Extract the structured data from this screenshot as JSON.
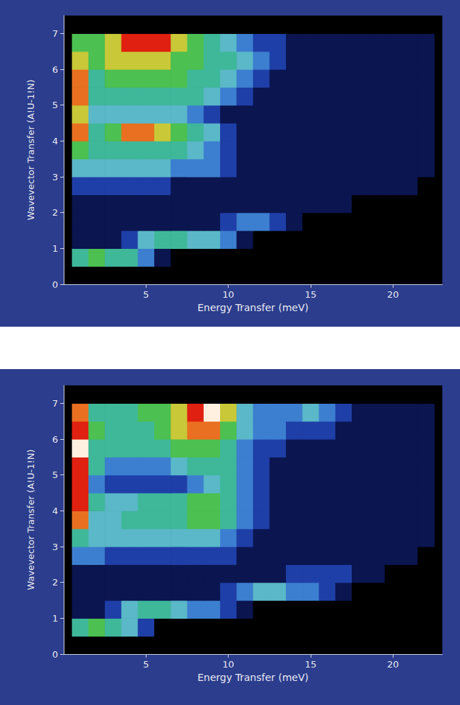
{
  "chart_data": [
    {
      "type": "heatmap",
      "x_label": "Energy Transfer (meV)",
      "y_label": "Wavevector Transfer (A!U-1!N)",
      "xlim": [
        0,
        23
      ],
      "xticks": [
        5,
        10,
        15,
        20
      ],
      "ylim": [
        0,
        7.5
      ],
      "yticks": [
        0,
        1,
        2,
        3,
        4,
        5,
        6,
        7
      ],
      "color_range": [
        0,
        10
      ],
      "x": [
        1,
        2,
        3,
        4,
        5,
        6,
        7,
        8,
        9,
        10,
        11,
        12,
        13,
        14,
        15,
        16,
        17,
        18,
        19,
        20,
        21,
        22
      ],
      "y": [
        0.25,
        0.75,
        1.25,
        1.75,
        2.25,
        2.75,
        3.25,
        3.75,
        4.25,
        4.75,
        5.25,
        5.75,
        6.25,
        6.75,
        7.25
      ],
      "intensity": [
        [
          0,
          0,
          0,
          0,
          0,
          0,
          0,
          0,
          0,
          0,
          0,
          0,
          0,
          0,
          0,
          0,
          0,
          0,
          0,
          0,
          0,
          0
        ],
        [
          5,
          6,
          5,
          5,
          3,
          1,
          0,
          0,
          0,
          0,
          0,
          0,
          0,
          0,
          0,
          0,
          0,
          0,
          0,
          0,
          0,
          0
        ],
        [
          1,
          1,
          1,
          2,
          4,
          5,
          5,
          4,
          4,
          3,
          1,
          0,
          0,
          0,
          0,
          0,
          0,
          0,
          0,
          0,
          0,
          0
        ],
        [
          1,
          1,
          1,
          1,
          1,
          1,
          1,
          1,
          1,
          2,
          3,
          3,
          2,
          1,
          0,
          0,
          0,
          0,
          0,
          0,
          0,
          0
        ],
        [
          1,
          1,
          1,
          1,
          1,
          1,
          1,
          1,
          1,
          1,
          1,
          1,
          1,
          1,
          1,
          1,
          1,
          0,
          0,
          0,
          0,
          0
        ],
        [
          2,
          2,
          2,
          2,
          2,
          2,
          1,
          1,
          1,
          1,
          1,
          1,
          1,
          1,
          1,
          1,
          1,
          1,
          1,
          1,
          1,
          0
        ],
        [
          4,
          4,
          4,
          4,
          4,
          4,
          3,
          3,
          3,
          2,
          1,
          1,
          1,
          1,
          1,
          1,
          1,
          1,
          1,
          1,
          1,
          1
        ],
        [
          6,
          5,
          5,
          5,
          5,
          5,
          5,
          4,
          3,
          2,
          1,
          1,
          1,
          1,
          1,
          1,
          1,
          1,
          1,
          1,
          1,
          1
        ],
        [
          8,
          5,
          6,
          8,
          8,
          7,
          6,
          5,
          4,
          2,
          1,
          1,
          1,
          1,
          1,
          1,
          1,
          1,
          1,
          1,
          1,
          1
        ],
        [
          7,
          4,
          4,
          4,
          4,
          4,
          4,
          3,
          2,
          1,
          1,
          1,
          1,
          1,
          1,
          1,
          1,
          1,
          1,
          1,
          1,
          1
        ],
        [
          8,
          5,
          5,
          5,
          5,
          5,
          5,
          5,
          4,
          3,
          2,
          1,
          1,
          1,
          1,
          1,
          1,
          1,
          1,
          1,
          1,
          1
        ],
        [
          8,
          5,
          6,
          6,
          6,
          6,
          6,
          5,
          5,
          4,
          3,
          2,
          1,
          1,
          1,
          1,
          1,
          1,
          1,
          1,
          1,
          1
        ],
        [
          7,
          6,
          7,
          7,
          7,
          7,
          6,
          6,
          5,
          5,
          4,
          3,
          2,
          1,
          1,
          1,
          1,
          1,
          1,
          1,
          1,
          1
        ],
        [
          6,
          6,
          7,
          9,
          9,
          9,
          7,
          6,
          5,
          4,
          3,
          2,
          2,
          1,
          1,
          1,
          1,
          1,
          1,
          1,
          1,
          1
        ],
        [
          0,
          0,
          0,
          0,
          0,
          0,
          0,
          0,
          0,
          0,
          0,
          0,
          0,
          0,
          0,
          0,
          0,
          0,
          0,
          0,
          0,
          0
        ]
      ]
    },
    {
      "type": "heatmap",
      "x_label": "Energy Transfer (meV)",
      "y_label": "Wavevector Transfer (A!U-1!N)",
      "xlim": [
        0,
        23
      ],
      "xticks": [
        5,
        10,
        15,
        20
      ],
      "ylim": [
        0,
        7.5
      ],
      "yticks": [
        0,
        1,
        2,
        3,
        4,
        5,
        6,
        7
      ],
      "color_range": [
        0,
        10
      ],
      "x": [
        1,
        2,
        3,
        4,
        5,
        6,
        7,
        8,
        9,
        10,
        11,
        12,
        13,
        14,
        15,
        16,
        17,
        18,
        19,
        20,
        21,
        22
      ],
      "y": [
        0.25,
        0.75,
        1.25,
        1.75,
        2.25,
        2.75,
        3.25,
        3.75,
        4.25,
        4.75,
        5.25,
        5.75,
        6.25,
        6.75,
        7.25
      ],
      "intensity": [
        [
          0,
          0,
          0,
          0,
          0,
          0,
          0,
          0,
          0,
          0,
          0,
          0,
          0,
          0,
          0,
          0,
          0,
          0,
          0,
          0,
          0,
          0
        ],
        [
          5,
          6,
          5,
          4,
          2,
          0,
          0,
          0,
          0,
          0,
          0,
          0,
          0,
          0,
          0,
          0,
          0,
          0,
          0,
          0,
          0,
          0
        ],
        [
          1,
          1,
          2,
          4,
          5,
          5,
          4,
          3,
          3,
          2,
          1,
          0,
          0,
          0,
          0,
          0,
          0,
          0,
          0,
          0,
          0,
          0
        ],
        [
          1,
          1,
          1,
          1,
          1,
          1,
          1,
          1,
          1,
          2,
          3,
          4,
          4,
          3,
          3,
          2,
          1,
          0,
          0,
          0,
          0,
          0
        ],
        [
          1,
          1,
          1,
          1,
          1,
          1,
          1,
          1,
          1,
          1,
          1,
          1,
          1,
          2,
          2,
          2,
          2,
          1,
          1,
          0,
          0,
          0
        ],
        [
          3,
          3,
          2,
          2,
          2,
          2,
          2,
          2,
          2,
          2,
          1,
          1,
          1,
          1,
          1,
          1,
          1,
          1,
          1,
          1,
          1,
          0
        ],
        [
          5,
          4,
          4,
          4,
          4,
          4,
          4,
          4,
          4,
          3,
          2,
          1,
          1,
          1,
          1,
          1,
          1,
          1,
          1,
          1,
          1,
          1
        ],
        [
          8,
          4,
          4,
          5,
          5,
          5,
          5,
          6,
          6,
          5,
          3,
          2,
          1,
          1,
          1,
          1,
          1,
          1,
          1,
          1,
          1,
          1
        ],
        [
          9,
          5,
          4,
          4,
          5,
          5,
          5,
          6,
          6,
          5,
          3,
          2,
          1,
          1,
          1,
          1,
          1,
          1,
          1,
          1,
          1,
          1
        ],
        [
          9,
          3,
          2,
          2,
          2,
          2,
          2,
          3,
          4,
          5,
          3,
          2,
          1,
          1,
          1,
          1,
          1,
          1,
          1,
          1,
          1,
          1
        ],
        [
          9,
          5,
          3,
          3,
          3,
          3,
          4,
          5,
          5,
          5,
          3,
          2,
          1,
          1,
          1,
          1,
          1,
          1,
          1,
          1,
          1,
          1
        ],
        [
          10,
          5,
          5,
          5,
          5,
          5,
          6,
          6,
          6,
          5,
          3,
          2,
          2,
          1,
          1,
          1,
          1,
          1,
          1,
          1,
          1,
          1
        ],
        [
          9,
          6,
          5,
          5,
          5,
          6,
          7,
          8,
          8,
          6,
          4,
          3,
          3,
          2,
          2,
          2,
          1,
          1,
          1,
          1,
          1,
          1
        ],
        [
          8,
          5,
          5,
          5,
          6,
          6,
          7,
          9,
          10,
          7,
          4,
          3,
          3,
          3,
          4,
          3,
          2,
          1,
          1,
          1,
          1,
          1
        ],
        [
          0,
          0,
          0,
          0,
          0,
          0,
          0,
          0,
          0,
          0,
          0,
          0,
          0,
          0,
          0,
          0,
          0,
          0,
          0,
          0,
          0,
          0
        ]
      ]
    }
  ]
}
